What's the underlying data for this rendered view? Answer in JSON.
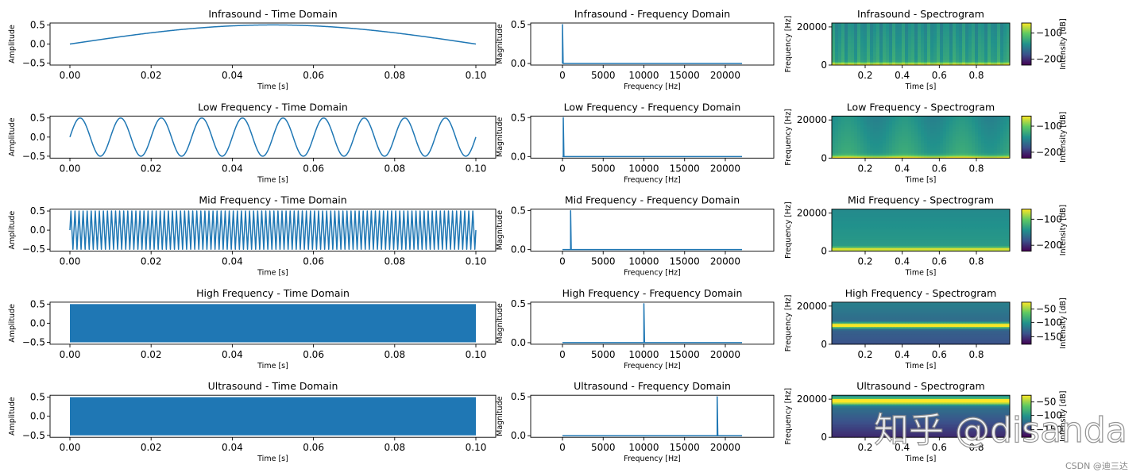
{
  "chart_data": [
    {
      "type": "line",
      "kind": "time",
      "signal": "infrasound",
      "frequency_hz": 5,
      "amplitude": 0.5,
      "title": "Infrasound - Time Domain",
      "xlabel": "Time [s]",
      "ylabel": "Amplitude",
      "xlim": [
        0,
        0.1
      ],
      "ylim": [
        -0.55,
        0.55
      ],
      "xticks": [
        "0.00",
        "0.02",
        "0.04",
        "0.06",
        "0.08",
        "0.10"
      ],
      "yticks": [
        "0.5",
        "0.0",
        "−0.5"
      ]
    },
    {
      "type": "line",
      "kind": "spectrum",
      "signal": "infrasound",
      "peak_frequency_hz": 5,
      "peak_magnitude": 0.5,
      "title": "Infrasound - Frequency Domain",
      "xlabel": "Frequency [Hz]",
      "ylabel": "Magnitude",
      "xlim": [
        0,
        22050
      ],
      "ylim": [
        -0.02,
        0.52
      ],
      "xticks": [
        "0",
        "5000",
        "10000",
        "15000",
        "20000"
      ],
      "yticks": [
        "0.5",
        "0.0"
      ]
    },
    {
      "type": "heatmap",
      "kind": "spectrogram",
      "signal": "infrasound",
      "tone_frequency_hz": 5,
      "title": "Infrasound - Spectrogram",
      "xlabel": "Time [s]",
      "ylabel": "Frequency [Hz]",
      "colorbar_label": "Intensity [dB]",
      "colormap": "viridis",
      "xticks": [
        "0.2",
        "0.4",
        "0.6",
        "0.8"
      ],
      "yticks": [
        "20000",
        "0"
      ],
      "colorbar_ticks": [
        "−100",
        "−200"
      ]
    },
    {
      "type": "line",
      "kind": "time",
      "signal": "low",
      "frequency_hz": 100,
      "amplitude": 0.5,
      "title": "Low Frequency - Time Domain",
      "xlabel": "Time [s]",
      "ylabel": "Amplitude",
      "xlim": [
        0,
        0.1
      ],
      "ylim": [
        -0.55,
        0.55
      ],
      "xticks": [
        "0.00",
        "0.02",
        "0.04",
        "0.06",
        "0.08",
        "0.10"
      ],
      "yticks": [
        "0.5",
        "0.0",
        "−0.5"
      ]
    },
    {
      "type": "line",
      "kind": "spectrum",
      "signal": "low",
      "peak_frequency_hz": 100,
      "peak_magnitude": 0.5,
      "title": "Low Frequency - Frequency Domain",
      "xlabel": "Frequency [Hz]",
      "ylabel": "Magnitude",
      "xlim": [
        0,
        22050
      ],
      "ylim": [
        -0.02,
        0.52
      ],
      "xticks": [
        "0",
        "5000",
        "10000",
        "15000",
        "20000"
      ],
      "yticks": [
        "0.5",
        "0.0"
      ]
    },
    {
      "type": "heatmap",
      "kind": "spectrogram",
      "signal": "low",
      "tone_frequency_hz": 100,
      "title": "Low Frequency - Spectrogram",
      "xlabel": "Time [s]",
      "ylabel": "Frequency [Hz]",
      "colorbar_label": "Intensity [dB]",
      "colormap": "viridis",
      "xticks": [
        "0.2",
        "0.4",
        "0.6",
        "0.8"
      ],
      "yticks": [
        "20000",
        "0"
      ],
      "colorbar_ticks": [
        "−100",
        "−200"
      ]
    },
    {
      "type": "line",
      "kind": "time",
      "signal": "mid",
      "frequency_hz": 1000,
      "amplitude": 0.5,
      "title": "Mid Frequency - Time Domain",
      "xlabel": "Time [s]",
      "ylabel": "Amplitude",
      "xlim": [
        0,
        0.1
      ],
      "ylim": [
        -0.55,
        0.55
      ],
      "xticks": [
        "0.00",
        "0.02",
        "0.04",
        "0.06",
        "0.08",
        "0.10"
      ],
      "yticks": [
        "0.5",
        "0.0",
        "−0.5"
      ]
    },
    {
      "type": "line",
      "kind": "spectrum",
      "signal": "mid",
      "peak_frequency_hz": 1000,
      "peak_magnitude": 0.5,
      "title": "Mid Frequency - Frequency Domain",
      "xlabel": "Frequency [Hz]",
      "ylabel": "Magnitude",
      "xlim": [
        0,
        22050
      ],
      "ylim": [
        -0.02,
        0.52
      ],
      "xticks": [
        "0",
        "5000",
        "10000",
        "15000",
        "20000"
      ],
      "yticks": [
        "0.5",
        "0.0"
      ]
    },
    {
      "type": "heatmap",
      "kind": "spectrogram",
      "signal": "mid",
      "tone_frequency_hz": 1000,
      "title": "Mid Frequency - Spectrogram",
      "xlabel": "Time [s]",
      "ylabel": "Frequency [Hz]",
      "colorbar_label": "Intensity [dB]",
      "colormap": "viridis",
      "xticks": [
        "0.2",
        "0.4",
        "0.6",
        "0.8"
      ],
      "yticks": [
        "20000",
        "0"
      ],
      "colorbar_ticks": [
        "−100",
        "−200"
      ]
    },
    {
      "type": "line",
      "kind": "time",
      "signal": "high",
      "frequency_hz": 10000,
      "amplitude": 0.5,
      "title": "High Frequency - Time Domain",
      "xlabel": "Time [s]",
      "ylabel": "Amplitude",
      "xlim": [
        0,
        0.1
      ],
      "ylim": [
        -0.55,
        0.55
      ],
      "xticks": [
        "0.00",
        "0.02",
        "0.04",
        "0.06",
        "0.08",
        "0.10"
      ],
      "yticks": [
        "0.5",
        "0.0",
        "−0.5"
      ]
    },
    {
      "type": "line",
      "kind": "spectrum",
      "signal": "high",
      "peak_frequency_hz": 10000,
      "peak_magnitude": 0.5,
      "title": "High Frequency - Frequency Domain",
      "xlabel": "Frequency [Hz]",
      "ylabel": "Magnitude",
      "xlim": [
        0,
        22050
      ],
      "ylim": [
        -0.02,
        0.52
      ],
      "xticks": [
        "0",
        "5000",
        "10000",
        "15000",
        "20000"
      ],
      "yticks": [
        "0.5",
        "0.0"
      ]
    },
    {
      "type": "heatmap",
      "kind": "spectrogram",
      "signal": "high",
      "tone_frequency_hz": 10000,
      "title": "High Frequency - Spectrogram",
      "xlabel": "Time [s]",
      "ylabel": "Frequency [Hz]",
      "colorbar_label": "Intensity [dB]",
      "colormap": "viridis",
      "xticks": [
        "0.2",
        "0.4",
        "0.6",
        "0.8"
      ],
      "yticks": [
        "20000",
        "0"
      ],
      "colorbar_ticks": [
        "−50",
        "−100",
        "−150"
      ]
    },
    {
      "type": "line",
      "kind": "time",
      "signal": "ultra",
      "frequency_hz": 19000,
      "amplitude": 0.5,
      "title": "Ultrasound - Time Domain",
      "xlabel": "Time [s]",
      "ylabel": "Amplitude",
      "xlim": [
        0,
        0.1
      ],
      "ylim": [
        -0.55,
        0.55
      ],
      "xticks": [
        "0.00",
        "0.02",
        "0.04",
        "0.06",
        "0.08",
        "0.10"
      ],
      "yticks": [
        "0.5",
        "0.0",
        "−0.5"
      ]
    },
    {
      "type": "line",
      "kind": "spectrum",
      "signal": "ultra",
      "peak_frequency_hz": 19000,
      "peak_magnitude": 0.5,
      "title": "Ultrasound - Frequency Domain",
      "xlabel": "Frequency [Hz]",
      "ylabel": "Magnitude",
      "xlim": [
        0,
        22050
      ],
      "ylim": [
        -0.02,
        0.52
      ],
      "xticks": [
        "0",
        "5000",
        "10000",
        "15000",
        "20000"
      ],
      "yticks": [
        "0.5",
        "0.0"
      ]
    },
    {
      "type": "heatmap",
      "kind": "spectrogram",
      "signal": "ultra",
      "tone_frequency_hz": 19000,
      "title": "Ultrasound - Spectrogram",
      "xlabel": "Time [s]",
      "ylabel": "Frequency [Hz]",
      "colorbar_label": "Intensity [dB]",
      "colormap": "viridis",
      "xticks": [
        "0.2",
        "0.4",
        "0.6",
        "0.8"
      ],
      "yticks": [
        "20000",
        "0"
      ],
      "colorbar_ticks": [
        "−50",
        "−100",
        "−150"
      ]
    }
  ],
  "colors": {
    "line": "#1f77b4",
    "viridis": [
      "#440154",
      "#3b528b",
      "#21918c",
      "#5ec962",
      "#fde725"
    ]
  },
  "watermark": {
    "main": "知乎 @disanda",
    "credit": "CSDN @迪三达"
  }
}
